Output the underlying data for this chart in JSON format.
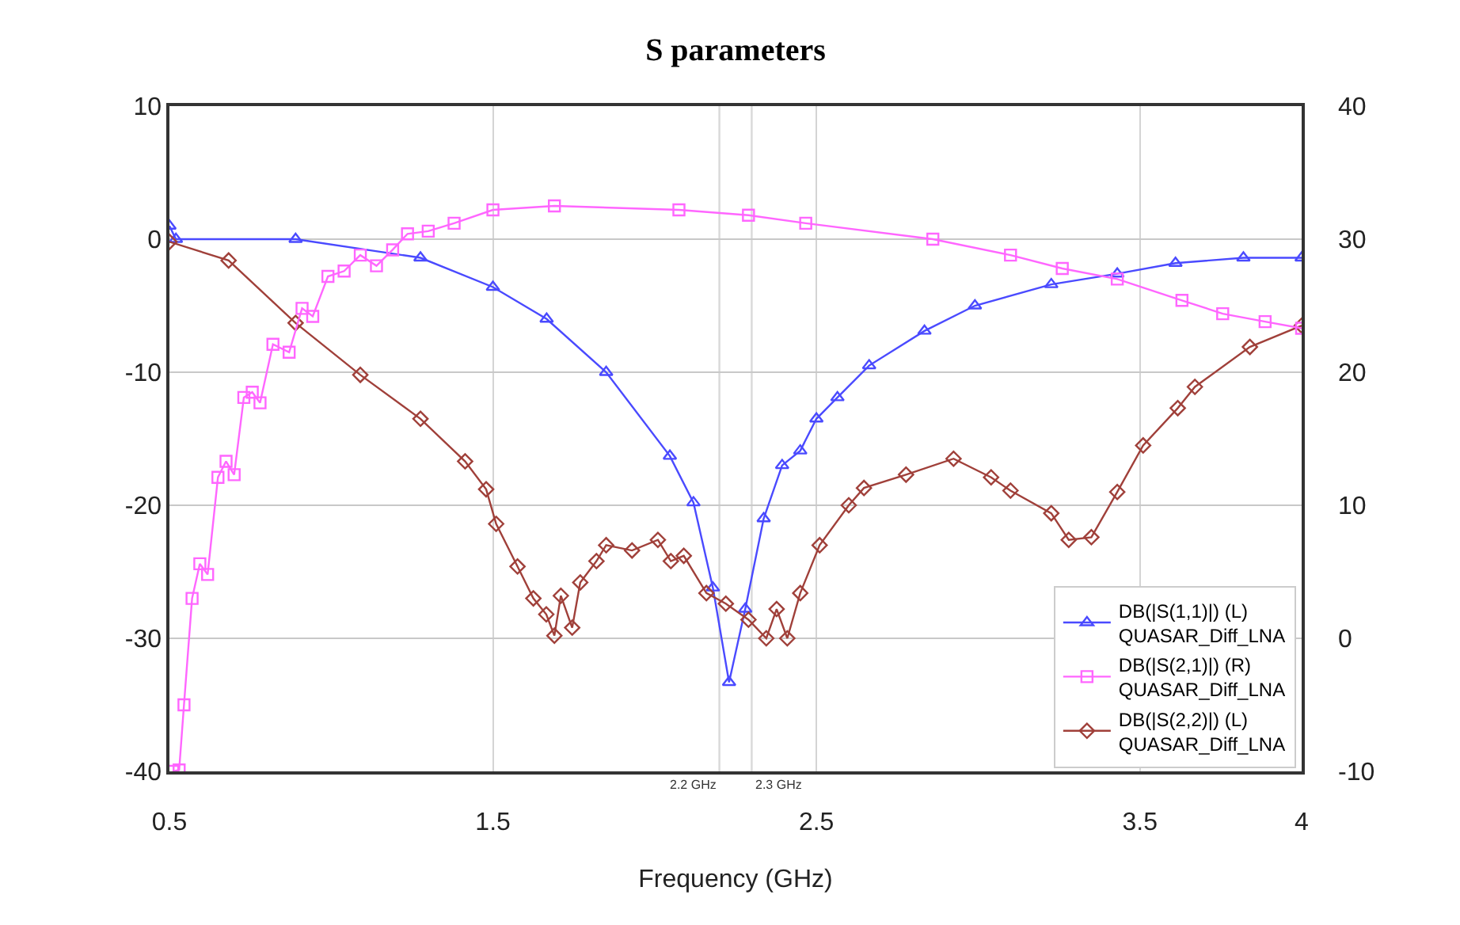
{
  "chart_data": {
    "type": "line",
    "title": "S parameters",
    "xlabel": "Frequency (GHz)",
    "xlim": [
      0.5,
      4
    ],
    "xticks": [
      0.5,
      1.5,
      2.5,
      3.5,
      4
    ],
    "ylim": [
      -40,
      10
    ],
    "yticks": [
      -40,
      -30,
      -20,
      -10,
      0,
      10
    ],
    "y2lim": [
      -10,
      40
    ],
    "y2ticks": [
      -10,
      0,
      10,
      20,
      30,
      40
    ],
    "grid": true,
    "legend": "bottom right",
    "line_style": "solid",
    "ref_lines": [
      {
        "axis": "x",
        "value": 2.2,
        "label": "2.2 GHz",
        "color": "#d9d9d9"
      },
      {
        "axis": "x",
        "value": 2.3,
        "label": "2.3 GHz",
        "color": "#d9d9d9"
      }
    ],
    "series": [
      {
        "name": "DB(|S(1,1)|) (L)\nQUASAR_Diff_LNA",
        "color": "#4a4aff",
        "marker": "triangle",
        "axis": "y",
        "x": [
          0.5,
          0.52,
          0.89,
          1.276,
          1.5,
          1.666,
          1.85,
          2.047,
          2.12,
          2.18,
          2.23,
          2.28,
          2.337,
          2.394,
          2.45,
          2.5,
          2.565,
          2.663,
          2.834,
          2.99,
          3.226,
          3.43,
          3.61,
          3.82,
          4.0
        ],
        "values": [
          1.0,
          0,
          0,
          -1.4,
          -3.6,
          -6.0,
          -10,
          -16.3,
          -19.8,
          -26.2,
          -33.3,
          -27.8,
          -21,
          -17,
          -15.9,
          -13.5,
          -11.9,
          -9.5,
          -6.9,
          -5.0,
          -3.4,
          -2.6,
          -1.8,
          -1.4,
          -1.4
        ]
      },
      {
        "name": "DB(|S(2,1)|) (R)\nQUASAR_Diff_LNA",
        "color": "#ff66ff",
        "marker": "square",
        "axis": "y2",
        "x": [
          0.51,
          0.53,
          0.545,
          0.57,
          0.594,
          0.618,
          0.65,
          0.675,
          0.7,
          0.73,
          0.756,
          0.78,
          0.82,
          0.87,
          0.91,
          0.943,
          0.99,
          1.04,
          1.09,
          1.14,
          1.19,
          1.236,
          1.3,
          1.38,
          1.5,
          1.69,
          2.075,
          2.29,
          2.467,
          2.86,
          3.1,
          3.26,
          3.43,
          3.63,
          3.756,
          3.887,
          4.0
        ],
        "values": [
          -10,
          -9.9,
          -5.0,
          3.0,
          5.6,
          4.8,
          12.1,
          13.3,
          12.3,
          18.1,
          18.5,
          17.7,
          22.1,
          21.5,
          24.8,
          24.2,
          27.2,
          27.6,
          28.8,
          28.0,
          29.2,
          30.4,
          30.6,
          31.2,
          32.2,
          32.5,
          32.2,
          31.8,
          31.2,
          30,
          28.8,
          27.8,
          27.0,
          25.4,
          24.4,
          23.8,
          23.3
        ]
      },
      {
        "name": "DB(|S(2,2)|) (L)\nQUASAR_Diff_LNA",
        "color": "#a0403a",
        "marker": "diamond",
        "axis": "y",
        "x": [
          0.5,
          0.683,
          0.89,
          1.09,
          1.276,
          1.414,
          1.479,
          1.51,
          1.576,
          1.625,
          1.665,
          1.69,
          1.71,
          1.745,
          1.77,
          1.82,
          1.85,
          1.93,
          2.01,
          2.05,
          2.09,
          2.16,
          2.22,
          2.29,
          2.345,
          2.377,
          2.41,
          2.45,
          2.51,
          2.6,
          2.647,
          2.777,
          2.924,
          3.04,
          3.1,
          3.226,
          3.28,
          3.35,
          3.43,
          3.51,
          3.617,
          3.67,
          3.84,
          4.0
        ],
        "values": [
          -0.2,
          -1.6,
          -6.3,
          -10.2,
          -13.5,
          -16.7,
          -18.8,
          -21.4,
          -24.6,
          -27.0,
          -28.2,
          -29.8,
          -26.8,
          -29.2,
          -25.8,
          -24.2,
          -23.0,
          -23.4,
          -22.6,
          -24.2,
          -23.8,
          -26.6,
          -27.4,
          -28.6,
          -30,
          -27.8,
          -30,
          -26.6,
          -23.0,
          -20.0,
          -18.7,
          -17.7,
          -16.5,
          -17.9,
          -18.9,
          -20.6,
          -22.6,
          -22.4,
          -19.0,
          -15.5,
          -12.7,
          -11.1,
          -8.1,
          -6.5
        ]
      }
    ]
  }
}
